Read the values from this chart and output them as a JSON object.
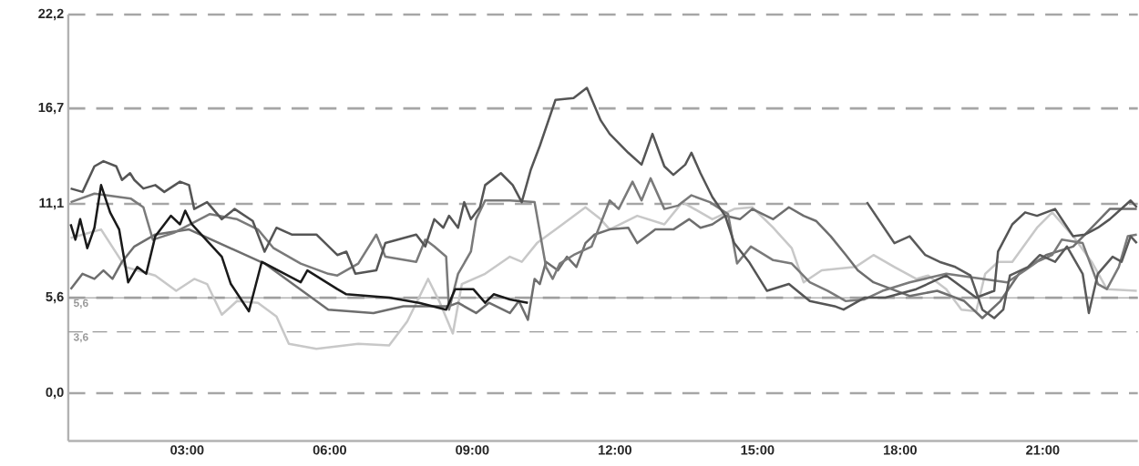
{
  "chart_data": {
    "type": "line",
    "xlim": [
      0.5,
      23
    ],
    "ylim": [
      -2.8,
      22.2
    ],
    "xticks": [
      {
        "value": 3,
        "label": "03:00"
      },
      {
        "value": 6,
        "label": "06:00"
      },
      {
        "value": 9,
        "label": "09:00"
      },
      {
        "value": 12,
        "label": "12:00"
      },
      {
        "value": 15,
        "label": "15:00"
      },
      {
        "value": 18,
        "label": "18:00"
      },
      {
        "value": 21,
        "label": "21:00"
      }
    ],
    "yticks": [
      {
        "value": 0,
        "label": "0,0"
      },
      {
        "value": 5.6,
        "label": "5,6"
      },
      {
        "value": 11.1,
        "label": "11,1"
      },
      {
        "value": 16.7,
        "label": "16,7"
      },
      {
        "value": 22.2,
        "label": "22,2"
      }
    ],
    "grid": "y",
    "ref_lines": [
      {
        "axis": "y",
        "value": 5.6,
        "label": "5,6",
        "color": "#9a9a9a",
        "line_style": "solid"
      },
      {
        "axis": "y",
        "value": 3.6,
        "label": "3,6",
        "color": "#9a9a9a",
        "line_style": "dashed"
      }
    ],
    "series": [
      {
        "color": "#c8c8c8",
        "x": [
          0.55,
          1.19,
          1.7,
          2.33,
          2.77,
          3.15,
          3.42,
          3.73,
          4.05,
          4.49,
          4.88,
          5.14,
          5.72,
          6.6,
          7.25,
          7.63,
          8.07,
          8.32,
          8.59,
          8.78,
          9.27,
          9.79,
          10.04,
          10.36,
          10.8,
          11.38,
          11.7,
          11.89,
          12.47,
          13.04,
          13.42,
          14.05,
          14.51,
          14.89,
          15.33,
          15.72,
          15.97,
          16.35,
          17.06,
          17.44,
          17.88,
          18.34,
          18.59,
          18.97,
          19.29,
          19.6,
          19.79,
          20.06,
          20.36,
          20.88,
          21.2,
          21.64,
          22.03,
          22.35,
          22.98
        ],
        "values": [
          9.1,
          9.6,
          7.4,
          6.9,
          6.0,
          6.7,
          6.4,
          4.6,
          5.4,
          5.3,
          4.5,
          2.9,
          2.6,
          2.9,
          2.8,
          4.2,
          6.7,
          5.3,
          3.5,
          6.4,
          7.0,
          8.0,
          7.7,
          8.8,
          9.7,
          10.9,
          10.2,
          9.6,
          10.4,
          9.9,
          11.2,
          10.2,
          10.8,
          10.9,
          9.7,
          8.5,
          6.5,
          7.2,
          7.4,
          8.1,
          7.4,
          6.7,
          6.9,
          6.1,
          4.9,
          4.8,
          7.0,
          7.7,
          7.7,
          9.7,
          10.6,
          9.2,
          7.7,
          6.1,
          6.0
        ]
      },
      {
        "color": "#6e6e6e",
        "x": [
          0.55,
          0.8,
          1.05,
          1.24,
          1.43,
          1.63,
          1.89,
          2.33,
          3.04,
          4.63,
          5.97,
          6.92,
          7.55,
          8.51,
          8.7,
          9.08,
          9.35,
          9.79,
          9.98,
          10.17,
          10.31,
          10.42,
          10.55,
          10.8,
          10.99,
          11.19,
          11.38,
          11.57,
          11.89,
          12.28,
          12.47,
          12.85,
          13.23,
          13.56,
          13.8,
          14.05,
          14.32,
          14.63,
          14.89,
          15.33,
          15.66,
          15.97,
          16.23,
          16.54,
          16.86,
          17.11,
          17.44,
          18.2,
          18.78,
          19.35,
          19.73,
          20.11,
          20.5,
          21.07,
          21.64,
          22.03,
          22.41,
          22.98
        ],
        "values": [
          6.1,
          7.0,
          6.7,
          7.2,
          6.7,
          7.7,
          8.6,
          9.3,
          9.6,
          7.6,
          4.9,
          4.7,
          5.1,
          5.1,
          5.3,
          4.7,
          5.3,
          4.7,
          5.4,
          4.3,
          6.7,
          6.4,
          7.7,
          7.2,
          8.0,
          7.4,
          8.8,
          9.3,
          9.6,
          9.7,
          8.8,
          9.6,
          9.6,
          10.2,
          9.7,
          9.9,
          10.4,
          10.2,
          10.8,
          10.2,
          10.9,
          10.4,
          10.1,
          9.2,
          8.1,
          7.2,
          6.5,
          5.7,
          6.0,
          5.4,
          4.4,
          5.4,
          7.0,
          8.1,
          8.6,
          9.7,
          10.8,
          10.8
        ]
      },
      {
        "color": "#7a7a7a",
        "x": [
          0.55,
          1.05,
          1.82,
          2.08,
          2.28,
          2.72,
          3.48,
          4.05,
          4.49,
          4.82,
          5.39,
          5.97,
          6.16,
          6.6,
          6.98,
          7.17,
          7.82,
          8.01,
          8.2,
          8.45,
          8.51,
          8.7,
          8.97,
          9.08,
          9.27,
          9.79,
          10.31,
          10.55,
          10.69,
          10.84,
          11.13,
          11.51,
          11.89,
          12.08,
          12.37,
          12.56,
          12.75,
          13.04,
          13.33,
          13.61,
          14.0,
          14.38,
          14.57,
          14.86,
          15.33,
          15.72,
          16.1,
          16.48,
          16.86,
          17.25,
          17.63,
          18.2,
          18.97,
          20.25,
          20.63,
          20.88,
          21.2,
          21.4,
          21.84,
          22.16,
          22.35,
          22.6,
          22.79,
          22.98
        ],
        "values": [
          11.2,
          11.7,
          11.4,
          10.9,
          9.0,
          9.4,
          10.5,
          10.2,
          9.6,
          8.5,
          7.6,
          7.0,
          6.9,
          7.6,
          9.3,
          8.0,
          7.7,
          9.0,
          8.6,
          8.0,
          4.9,
          7.0,
          8.3,
          10.2,
          11.3,
          11.3,
          11.2,
          7.4,
          6.7,
          7.6,
          8.1,
          8.6,
          11.3,
          10.8,
          12.4,
          11.3,
          12.6,
          10.8,
          11.0,
          11.6,
          11.2,
          10.5,
          7.6,
          8.6,
          7.8,
          7.6,
          6.5,
          6.0,
          5.4,
          5.5,
          6.0,
          6.5,
          7.0,
          6.5,
          7.2,
          7.7,
          8.1,
          9.0,
          8.8,
          6.4,
          6.1,
          7.4,
          9.2,
          9.3
        ]
      },
      {
        "color": "#555555",
        "x": [
          0.55,
          0.8,
          1.05,
          1.24,
          1.51,
          1.63,
          1.8,
          1.89,
          2.08,
          2.33,
          2.52,
          2.85,
          3.04,
          3.15,
          3.42,
          3.73,
          4.0,
          4.38,
          4.63,
          4.88,
          5.2,
          5.72,
          6.16,
          6.35,
          6.54,
          6.98,
          7.17,
          7.82,
          8.01,
          8.2,
          8.39,
          8.51,
          8.7,
          8.83,
          8.97,
          9.16,
          9.27,
          9.6,
          9.85,
          10.04,
          10.23,
          10.42,
          10.75,
          11.13,
          11.41,
          11.7,
          11.89,
          12.28,
          12.56,
          12.79,
          13.04,
          13.23,
          13.48,
          13.61,
          13.8,
          14.05,
          14.32,
          14.51,
          14.82,
          15.2,
          15.66,
          16.1,
          16.62,
          16.81,
          17.25,
          17.69,
          18.34,
          18.97,
          19.6,
          19.98,
          20.06,
          20.36,
          20.63,
          20.88,
          21.26,
          21.64,
          21.89,
          22.16,
          22.41,
          22.85,
          22.98
        ],
        "values": [
          12.0,
          11.8,
          13.3,
          13.6,
          13.3,
          12.5,
          12.9,
          12.5,
          12.0,
          12.2,
          11.8,
          12.4,
          12.2,
          10.8,
          11.2,
          10.2,
          10.8,
          10.1,
          8.3,
          9.7,
          9.3,
          9.3,
          8.1,
          8.3,
          7.0,
          7.2,
          8.8,
          9.3,
          8.6,
          10.2,
          9.7,
          10.4,
          9.7,
          11.2,
          10.2,
          10.9,
          12.2,
          12.9,
          12.2,
          11.2,
          13.1,
          14.5,
          17.2,
          17.3,
          17.9,
          16.0,
          15.2,
          14.1,
          13.4,
          15.2,
          13.3,
          12.8,
          13.4,
          14.1,
          12.9,
          11.5,
          10.4,
          8.8,
          7.7,
          6.0,
          6.4,
          5.4,
          5.1,
          4.9,
          5.6,
          5.6,
          6.1,
          6.9,
          5.6,
          6.0,
          8.3,
          9.9,
          10.6,
          10.4,
          10.8,
          9.2,
          9.3,
          9.7,
          10.2,
          11.3,
          10.9
        ]
      },
      {
        "color": "#5a5a5a",
        "x": [
          17.3,
          17.88,
          18.2,
          18.53,
          18.83,
          19.16,
          19.48,
          19.73,
          19.98,
          20.17,
          20.31,
          20.69,
          20.94,
          21.26,
          21.51,
          21.84,
          21.97,
          22.16,
          22.47,
          22.66,
          22.85,
          22.98
        ],
        "values": [
          11.2,
          8.8,
          9.2,
          8.1,
          7.7,
          7.4,
          6.9,
          4.9,
          4.4,
          4.9,
          6.9,
          7.4,
          8.1,
          7.7,
          8.6,
          7.0,
          4.7,
          7.0,
          8.0,
          7.7,
          9.2,
          8.8
        ]
      },
      {
        "color": "#1a1a1a",
        "x": [
          0.55,
          0.65,
          0.75,
          0.9,
          1.05,
          1.19,
          1.38,
          1.57,
          1.76,
          1.95,
          2.14,
          2.33,
          2.66,
          2.85,
          2.96,
          3.1,
          3.73,
          3.92,
          4.3,
          4.57,
          5.39,
          5.53,
          6.16,
          6.35,
          7.25,
          7.88,
          8.45,
          8.64,
          9.02,
          9.27,
          9.45,
          9.79,
          10.17
        ],
        "values": [
          9.9,
          9.0,
          10.2,
          8.5,
          9.7,
          12.2,
          10.6,
          9.6,
          6.5,
          7.4,
          7.0,
          9.2,
          10.4,
          9.9,
          10.7,
          9.9,
          8.0,
          6.4,
          4.8,
          7.7,
          6.5,
          7.2,
          6.1,
          5.8,
          5.6,
          5.3,
          4.9,
          6.1,
          6.1,
          5.3,
          5.8,
          5.5,
          5.3
        ]
      }
    ]
  }
}
